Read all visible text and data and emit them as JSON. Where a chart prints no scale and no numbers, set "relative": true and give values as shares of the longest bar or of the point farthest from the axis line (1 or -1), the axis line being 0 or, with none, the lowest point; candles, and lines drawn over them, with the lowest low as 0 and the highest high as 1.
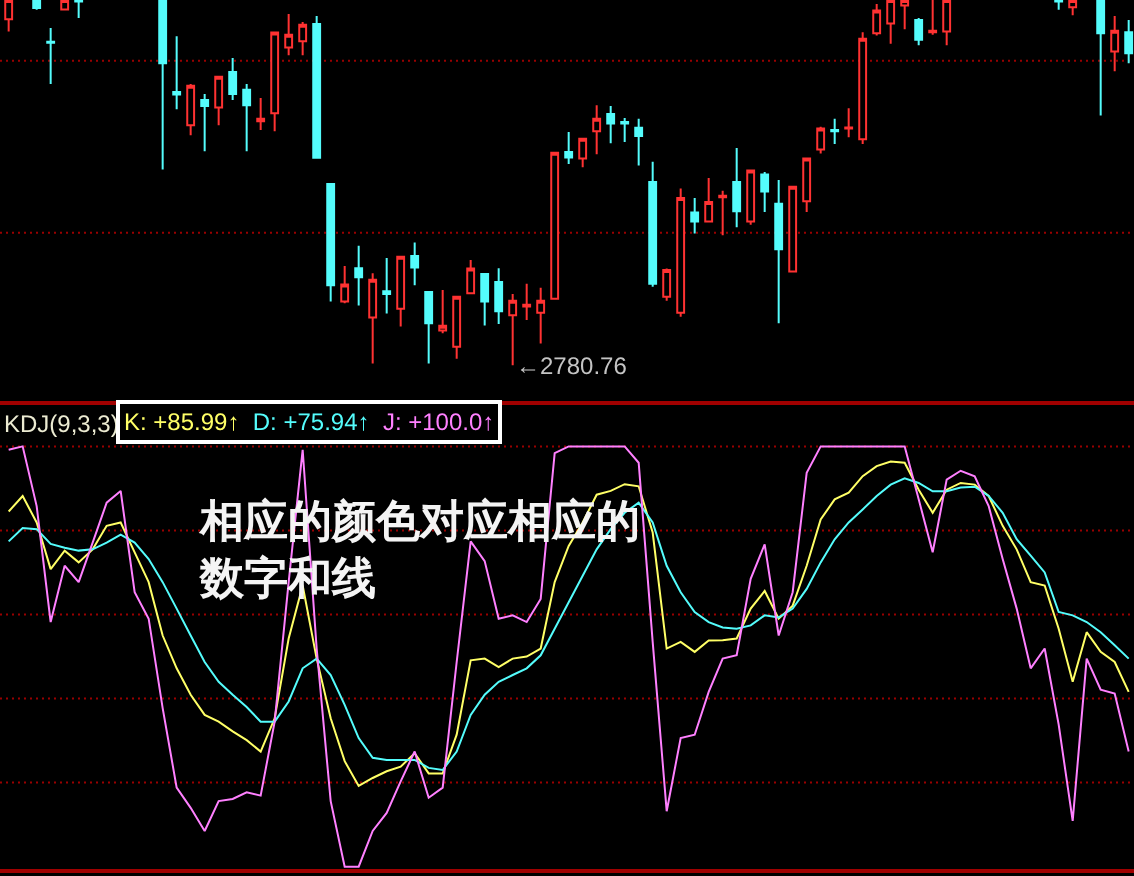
{
  "chart_data": [
    {
      "type": "candlestick",
      "relative": true,
      "categories": [
        null,
        null,
        null,
        null,
        null,
        null,
        null,
        null,
        null,
        null,
        null,
        null,
        null,
        null,
        null,
        null,
        null,
        null,
        null,
        null,
        null,
        null,
        null,
        null,
        null,
        null,
        null,
        null,
        null,
        null,
        null,
        null,
        null,
        null,
        null,
        null,
        null,
        null,
        null,
        null,
        null,
        null,
        null,
        null,
        null,
        null,
        null,
        null,
        null,
        null,
        null,
        null,
        null,
        null,
        null,
        null,
        null,
        null,
        null,
        null,
        null,
        null,
        null,
        null,
        null,
        null,
        null,
        null,
        null,
        null,
        null,
        null,
        null,
        null,
        null,
        null,
        null,
        null,
        null,
        null,
        null
      ],
      "ohlc": [
        [
          0.947,
          1,
          0.914,
          1
        ],
        null,
        [
          1,
          1,
          0.973,
          0.978
        ],
        [
          0.886,
          0.923,
          0.77,
          0.883
        ],
        [
          0.974,
          1,
          0.974,
          1
        ],
        [
          1,
          1,
          0.951,
          0.996
        ],
        null,
        null,
        null,
        null,
        null,
        [
          1,
          1,
          0.536,
          0.827
        ],
        [
          0.748,
          0.901,
          0.701,
          0.741
        ],
        [
          0.657,
          0.77,
          0.63,
          0.765
        ],
        [
          0.726,
          0.743,
          0.586,
          0.71
        ],
        [
          0.706,
          0.79,
          0.657,
          0.79
        ],
        [
          0.803,
          0.841,
          0.726,
          0.743
        ],
        [
          0.754,
          0.77,
          0.586,
          0.712
        ],
        [
          0.668,
          0.732,
          0.644,
          0.675
        ],
        [
          0.69,
          0.911,
          0.641,
          0.911
        ],
        [
          0.87,
          0.962,
          0.849,
          0.905
        ],
        [
          0.887,
          0.94,
          0.849,
          0.932
        ],
        [
          0.934,
          0.956,
          0.568,
          0.568
        ],
        [
          0.496,
          0.496,
          0.175,
          0.219
        ],
        [
          0.175,
          0.272,
          0.17,
          0.221
        ],
        [
          0.266,
          0.327,
          0.164,
          0.241
        ],
        [
          0.131,
          0.252,
          0.005,
          0.234
        ],
        [
          0.203,
          0.294,
          0.142,
          0.195
        ],
        [
          0.155,
          0.297,
          0.106,
          0.297
        ],
        [
          0.299,
          0.336,
          0.219,
          0.268
        ],
        [
          0.201,
          0.201,
          0.005,
          0.115
        ],
        [
          0.095,
          0.206,
          0.088,
          0.108
        ],
        [
          0.051,
          0.188,
          0.018,
          0.188
        ],
        [
          0.197,
          0.288,
          0.197,
          0.265
        ],
        [
          0.25,
          0.25,
          0.109,
          0.175
        ],
        [
          0.228,
          0.266,
          0.113,
          0.148
        ],
        [
          0.137,
          0.195,
          0,
          0.177
        ],
        [
          0.161,
          0.223,
          0.124,
          0.166
        ],
        [
          0.144,
          0.212,
          0.06,
          0.177
        ],
        [
          0.182,
          0.582,
          0.182,
          0.582
        ],
        [
          0.584,
          0.639,
          0.551,
          0.569
        ],
        [
          0.566,
          0.62,
          0.542,
          0.62
        ],
        [
          0.641,
          0.712,
          0.578,
          0.675
        ],
        [
          0.688,
          0.71,
          0.608,
          0.662
        ],
        [
          0.666,
          0.677,
          0.611,
          0.662
        ],
        [
          0.65,
          0.675,
          0.547,
          0.628
        ],
        [
          0.502,
          0.557,
          0.215,
          0.223
        ],
        [
          0.188,
          0.265,
          0.177,
          0.261
        ],
        [
          0.144,
          0.484,
          0.133,
          0.458
        ],
        [
          0.418,
          0.458,
          0.361,
          0.394
        ],
        [
          0.394,
          0.513,
          0.394,
          0.447
        ],
        [
          0.46,
          0.478,
          0.356,
          0.464
        ],
        [
          0.502,
          0.595,
          0.378,
          0.422
        ],
        [
          0.394,
          0.533,
          0.385,
          0.533
        ],
        [
          0.522,
          0.529,
          0.42,
          0.476
        ],
        [
          0.442,
          0.507,
          0.115,
          0.318
        ],
        [
          0.257,
          0.489,
          0.257,
          0.489
        ],
        [
          0.449,
          0.566,
          0.42,
          0.566
        ],
        [
          0.591,
          0.653,
          0.58,
          0.648
        ],
        [
          0.644,
          0.675,
          0.606,
          0.641
        ],
        [
          0.648,
          0.704,
          0.624,
          0.651
        ],
        [
          0.619,
          0.912,
          0.606,
          0.894
        ],
        [
          0.909,
          0.989,
          0.903,
          0.971
        ],
        [
          0.936,
          1,
          0.88,
          1
        ],
        [
          0.985,
          1,
          0.92,
          1
        ],
        [
          0.945,
          0.951,
          0.876,
          0.891
        ],
        [
          0.912,
          1,
          0.905,
          0.916
        ],
        [
          0.914,
          1,
          0.876,
          1
        ],
        null,
        null,
        null,
        null,
        null,
        null,
        null,
        [
          1,
          1,
          0.973,
          0.996
        ],
        [
          0.98,
          1,
          0.958,
          1
        ],
        null,
        [
          1,
          1,
          0.684,
          0.909
        ],
        [
          0.859,
          0.956,
          0.805,
          0.916
        ],
        [
          0.912,
          0.945,
          0.827,
          0.854
        ]
      ],
      "colors": [
        "#ff3232",
        null,
        "#54fcfc",
        "#54fcfc",
        "#ff3232",
        "#54fcfc",
        null,
        null,
        null,
        null,
        null,
        "#54fcfc",
        "#54fcfc",
        "#ff3232",
        "#54fcfc",
        "#ff3232",
        "#54fcfc",
        "#54fcfc",
        "#ff3232",
        "#ff3232",
        "#ff3232",
        "#ff3232",
        "#54fcfc",
        "#54fcfc",
        "#ff3232",
        "#54fcfc",
        "#ff3232",
        "#54fcfc",
        "#ff3232",
        "#54fcfc",
        "#54fcfc",
        "#ff3232",
        "#ff3232",
        "#ff3232",
        "#54fcfc",
        "#54fcfc",
        "#ff3232",
        "#ff3232",
        "#ff3232",
        "#ff3232",
        "#54fcfc",
        "#ff3232",
        "#ff3232",
        "#54fcfc",
        "#54fcfc",
        "#54fcfc",
        "#54fcfc",
        "#ff3232",
        "#ff3232",
        "#54fcfc",
        "#ff3232",
        "#ff3232",
        "#54fcfc",
        "#ff3232",
        "#54fcfc",
        "#54fcfc",
        "#ff3232",
        "#ff3232",
        "#ff3232",
        "#54fcfc",
        "#ff3232",
        "#ff3232",
        "#ff3232",
        "#ff3232",
        "#ff3232",
        "#54fcfc",
        "#ff3232",
        "#ff3232",
        null,
        null,
        null,
        null,
        null,
        null,
        null,
        "#54fcfc",
        "#ff3232",
        null,
        "#54fcfc",
        "#ff3232",
        "#54fcfc"
      ],
      "annotations": [
        "←2780.76"
      ],
      "ref_lines": [
        {
          "axis": "y",
          "value": 0.834,
          "color": "#990000",
          "line_style": "dotted"
        },
        {
          "axis": "y",
          "value": 0.363,
          "color": "#990000",
          "line_style": "dotted"
        }
      ]
    },
    {
      "type": "line",
      "relative": true,
      "title": "KDJ(9,3,3)",
      "legend": "top left",
      "categories": [
        null,
        null,
        null,
        null,
        null,
        null,
        null,
        null,
        null,
        null,
        null,
        null,
        null,
        null,
        null,
        null,
        null,
        null,
        null,
        null,
        null,
        null,
        null,
        null,
        null,
        null,
        null,
        null,
        null,
        null,
        null,
        null,
        null,
        null,
        null,
        null,
        null,
        null,
        null,
        null,
        null,
        null,
        null,
        null,
        null,
        null,
        null,
        null,
        null,
        null,
        null,
        null,
        null,
        null,
        null,
        null,
        null,
        null,
        null,
        null,
        null,
        null,
        null,
        null,
        null,
        null,
        null,
        null,
        null,
        null,
        null,
        null,
        null,
        null,
        null,
        null,
        null,
        null,
        null,
        null,
        null
      ],
      "series": [
        {
          "name": "K: +85.99↑",
          "color": "#ffff66",
          "values": [
            0.845,
            0.882,
            0.819,
            0.708,
            0.752,
            0.724,
            0.755,
            0.811,
            0.819,
            0.748,
            0.677,
            0.55,
            0.472,
            0.409,
            0.361,
            0.345,
            0.322,
            0.301,
            0.274,
            0.353,
            0.543,
            0.669,
            0.495,
            0.353,
            0.251,
            0.192,
            0.211,
            0.227,
            0.238,
            0.27,
            0.222,
            0.222,
            0.314,
            0.491,
            0.495,
            0.475,
            0.495,
            0.5,
            0.519,
            0.677,
            0.763,
            0.819,
            0.885,
            0.894,
            0.91,
            0.905,
            0.795,
            0.519,
            0.535,
            0.511,
            0.538,
            0.539,
            0.543,
            0.614,
            0.656,
            0.59,
            0.621,
            0.716,
            0.826,
            0.874,
            0.89,
            0.929,
            0.953,
            0.964,
            0.961,
            0.897,
            0.842,
            0.897,
            0.913,
            0.909,
            0.882,
            0.811,
            0.755,
            0.677,
            0.669,
            0.566,
            0.44,
            0.558,
            0.511,
            0.487,
            0.416
          ]
        },
        {
          "name": "D: +75.94↑",
          "color": "#54fcfc",
          "values": [
            0.774,
            0.806,
            0.803,
            0.768,
            0.759,
            0.752,
            0.755,
            0.771,
            0.79,
            0.771,
            0.732,
            0.677,
            0.614,
            0.55,
            0.487,
            0.44,
            0.409,
            0.38,
            0.345,
            0.345,
            0.393,
            0.472,
            0.495,
            0.456,
            0.385,
            0.306,
            0.259,
            0.254,
            0.254,
            0.254,
            0.235,
            0.23,
            0.274,
            0.361,
            0.409,
            0.44,
            0.456,
            0.472,
            0.503,
            0.566,
            0.629,
            0.692,
            0.755,
            0.803,
            0.842,
            0.866,
            0.819,
            0.716,
            0.653,
            0.606,
            0.582,
            0.569,
            0.566,
            0.574,
            0.598,
            0.593,
            0.614,
            0.661,
            0.724,
            0.779,
            0.819,
            0.85,
            0.882,
            0.909,
            0.924,
            0.913,
            0.893,
            0.893,
            0.902,
            0.904,
            0.882,
            0.842,
            0.779,
            0.74,
            0.7,
            0.606,
            0.598,
            0.582,
            0.558,
            0.527,
            0.495
          ]
        },
        {
          "name": "J: +100.0↑",
          "color": "#ff80ff",
          "values": [
            0.992,
            1,
            0.858,
            0.582,
            0.716,
            0.677,
            0.771,
            0.866,
            0.894,
            0.653,
            0.59,
            0.377,
            0.188,
            0.14,
            0.085,
            0.156,
            0.161,
            0.177,
            0.169,
            0.345,
            0.677,
            0.992,
            0.519,
            0.156,
            0,
            0,
            0.085,
            0.128,
            0.203,
            0.274,
            0.164,
            0.188,
            0.487,
            0.774,
            0.727,
            0.59,
            0.598,
            0.582,
            0.637,
            0.984,
            1,
            1,
            1,
            1,
            1,
            0.961,
            0.535,
            0.132,
            0.306,
            0.314,
            0.416,
            0.495,
            0.503,
            0.685,
            0.767,
            0.55,
            0.653,
            0.937,
            1,
            1,
            1,
            1,
            1,
            1,
            1,
            0.874,
            0.748,
            0.921,
            0.942,
            0.929,
            0.858,
            0.732,
            0.614,
            0.472,
            0.519,
            0.338,
            0.109,
            0.495,
            0.421,
            0.412,
            0.274
          ]
        }
      ],
      "annotations": [
        "相应的颜色对应相应的数字和线"
      ],
      "ref_lines": [
        {
          "axis": "y",
          "value": 1.0,
          "color": "#990000",
          "line_style": "dotted"
        },
        {
          "axis": "y",
          "value": 0.8,
          "color": "#990000",
          "line_style": "dotted"
        },
        {
          "axis": "y",
          "value": 0.6,
          "color": "#990000",
          "line_style": "dotted"
        },
        {
          "axis": "y",
          "value": 0.4,
          "color": "#990000",
          "line_style": "dotted"
        },
        {
          "axis": "y",
          "value": 0.2,
          "color": "#990000",
          "line_style": "dotted"
        }
      ]
    }
  ]
}
